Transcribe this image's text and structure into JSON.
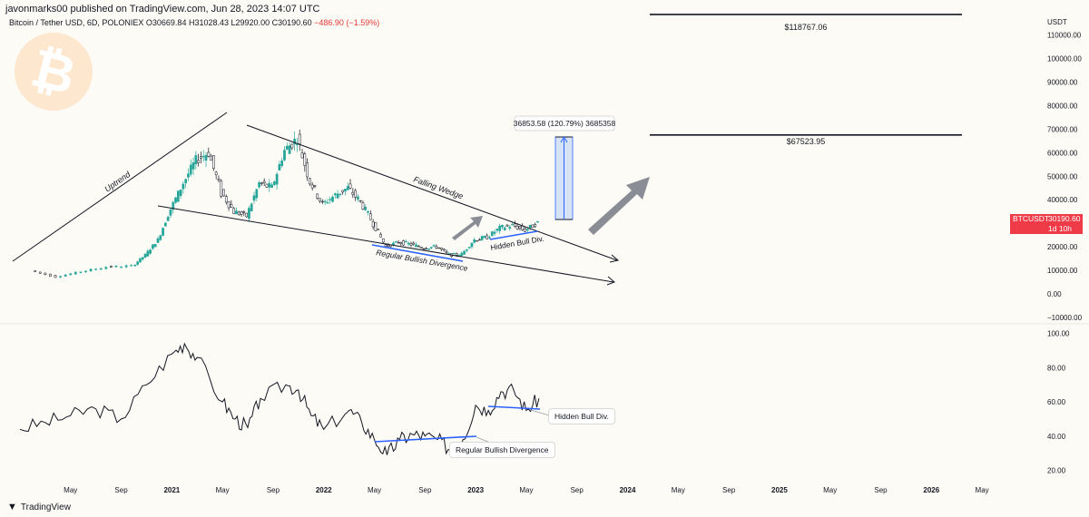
{
  "header": {
    "attribution": "javonmarks00 published on TradingView.com, Jun 28, 2023 14:07 UTC",
    "symbol": "Bitcoin / Tether USD, 6D, POLONIEX",
    "ohlc": {
      "o": "O30669.84",
      "h": "H31028.43",
      "l": "L29920.00",
      "c": "C30190.60",
      "change": "−486.90 (−1.59%)"
    }
  },
  "footer": {
    "brand": "TradingView",
    "icon": "tradingview-logo-icon"
  },
  "logo": {
    "glyph": "₿",
    "icon": "bitcoin-logo-icon",
    "color": "#fde7cf"
  },
  "price_badge": {
    "symbol": "BTCUSDT",
    "price": "30190.60",
    "countdown": "1d 10h",
    "color": "#ef3b47"
  },
  "annotations": {
    "target_high": "$118767.06",
    "target_mid": "$67523.95",
    "measure": "36853.58 (120.79%) 3685358",
    "uptrend": "Uptrend",
    "falling_wedge": "Falling Wedge",
    "hidden_bull_price": "Hidden Bull Div.",
    "regular_bull_price": "Regular Bullish Divergence",
    "hidden_bull_rsi": "Hidden Bull Div.",
    "regular_bull_rsi": "Regular Bullish Divergence"
  },
  "chart_data": [
    {
      "type": "line",
      "subtype": "candlestick",
      "title": "",
      "y_axis": {
        "label": "USDT",
        "ticks": [
          "110000.00",
          "100000.00",
          "90000.00",
          "80000.00",
          "70000.00",
          "60000.00",
          "50000.00",
          "40000.00",
          "30000.00",
          "20000.00",
          "10000.00",
          "0.00",
          "−10000.00"
        ],
        "range": [
          -12000,
          123000
        ]
      },
      "x_axis": {
        "ticks": [
          "May",
          "Sep",
          "2021",
          "May",
          "Sep",
          "2022",
          "May",
          "Sep",
          "2023",
          "May",
          "Sep",
          "2024",
          "May",
          "Sep",
          "2025",
          "May",
          "Sep",
          "2026",
          "May"
        ],
        "range": [
          "2019-12",
          "2026-07"
        ]
      },
      "series": [
        {
          "values": [
            [
              "2020-02",
              9800
            ],
            [
              "2020-04",
              7200
            ],
            [
              "2020-06",
              9400
            ],
            [
              "2020-08",
              11400
            ],
            [
              "2020-10",
              11800
            ],
            [
              "2020-11",
              16500
            ],
            [
              "2020-12",
              23000
            ],
            [
              "2021-01",
              36000
            ],
            [
              "2021-02",
              47000
            ],
            [
              "2021-03",
              57000
            ],
            [
              "2021-04",
              60000
            ],
            [
              "2021-05",
              43000
            ],
            [
              "2021-06",
              35000
            ],
            [
              "2021-07",
              33000
            ],
            [
              "2021-08",
              47000
            ],
            [
              "2021-09",
              45000
            ],
            [
              "2021-10",
              61000
            ],
            [
              "2021-11",
              66000
            ],
            [
              "2021-12",
              48000
            ],
            [
              "2022-01",
              38000
            ],
            [
              "2022-02",
              42000
            ],
            [
              "2022-03",
              45000
            ],
            [
              "2022-04",
              39000
            ],
            [
              "2022-05",
              30000
            ],
            [
              "2022-06",
              20000
            ],
            [
              "2022-07",
              22000
            ],
            [
              "2022-08",
              21000
            ],
            [
              "2022-09",
              19500
            ],
            [
              "2022-10",
              20000
            ],
            [
              "2022-11",
              16500
            ],
            [
              "2022-12",
              16800
            ],
            [
              "2023-01",
              23000
            ],
            [
              "2023-02",
              24000
            ],
            [
              "2023-03",
              28000
            ],
            [
              "2023-04",
              29000
            ],
            [
              "2023-05",
              27000
            ],
            [
              "2023-06",
              30190
            ]
          ]
        }
      ],
      "levels": [
        118767.06,
        67523.95
      ]
    },
    {
      "type": "line",
      "title": "",
      "y_axis": {
        "ticks": [
          "100.00",
          "80.00",
          "60.00",
          "40.00",
          "20.00"
        ],
        "range": [
          15,
          103
        ]
      },
      "series": [
        {
          "values": [
            [
              "2020-01",
              44
            ],
            [
              "2020-03",
              48
            ],
            [
              "2020-05",
              52
            ],
            [
              "2020-07",
              56
            ],
            [
              "2020-09",
              50
            ],
            [
              "2020-11",
              70
            ],
            [
              "2021-01",
              88
            ],
            [
              "2021-02",
              94
            ],
            [
              "2021-03",
              86
            ],
            [
              "2021-05",
              60
            ],
            [
              "2021-06",
              50
            ],
            [
              "2021-07",
              45
            ],
            [
              "2021-08",
              62
            ],
            [
              "2021-10",
              70
            ],
            [
              "2021-11",
              67
            ],
            [
              "2021-12",
              52
            ],
            [
              "2022-01",
              44
            ],
            [
              "2022-03",
              55
            ],
            [
              "2022-04",
              48
            ],
            [
              "2022-05",
              38
            ],
            [
              "2022-06",
              29
            ],
            [
              "2022-07",
              38
            ],
            [
              "2022-08",
              41
            ],
            [
              "2022-09",
              40
            ],
            [
              "2022-10",
              38
            ],
            [
              "2022-11",
              32
            ],
            [
              "2022-12",
              38
            ],
            [
              "2023-01",
              58
            ],
            [
              "2023-02",
              55
            ],
            [
              "2023-03",
              66
            ],
            [
              "2023-04",
              67
            ],
            [
              "2023-05",
              55
            ],
            [
              "2023-06",
              62
            ]
          ]
        }
      ]
    }
  ]
}
